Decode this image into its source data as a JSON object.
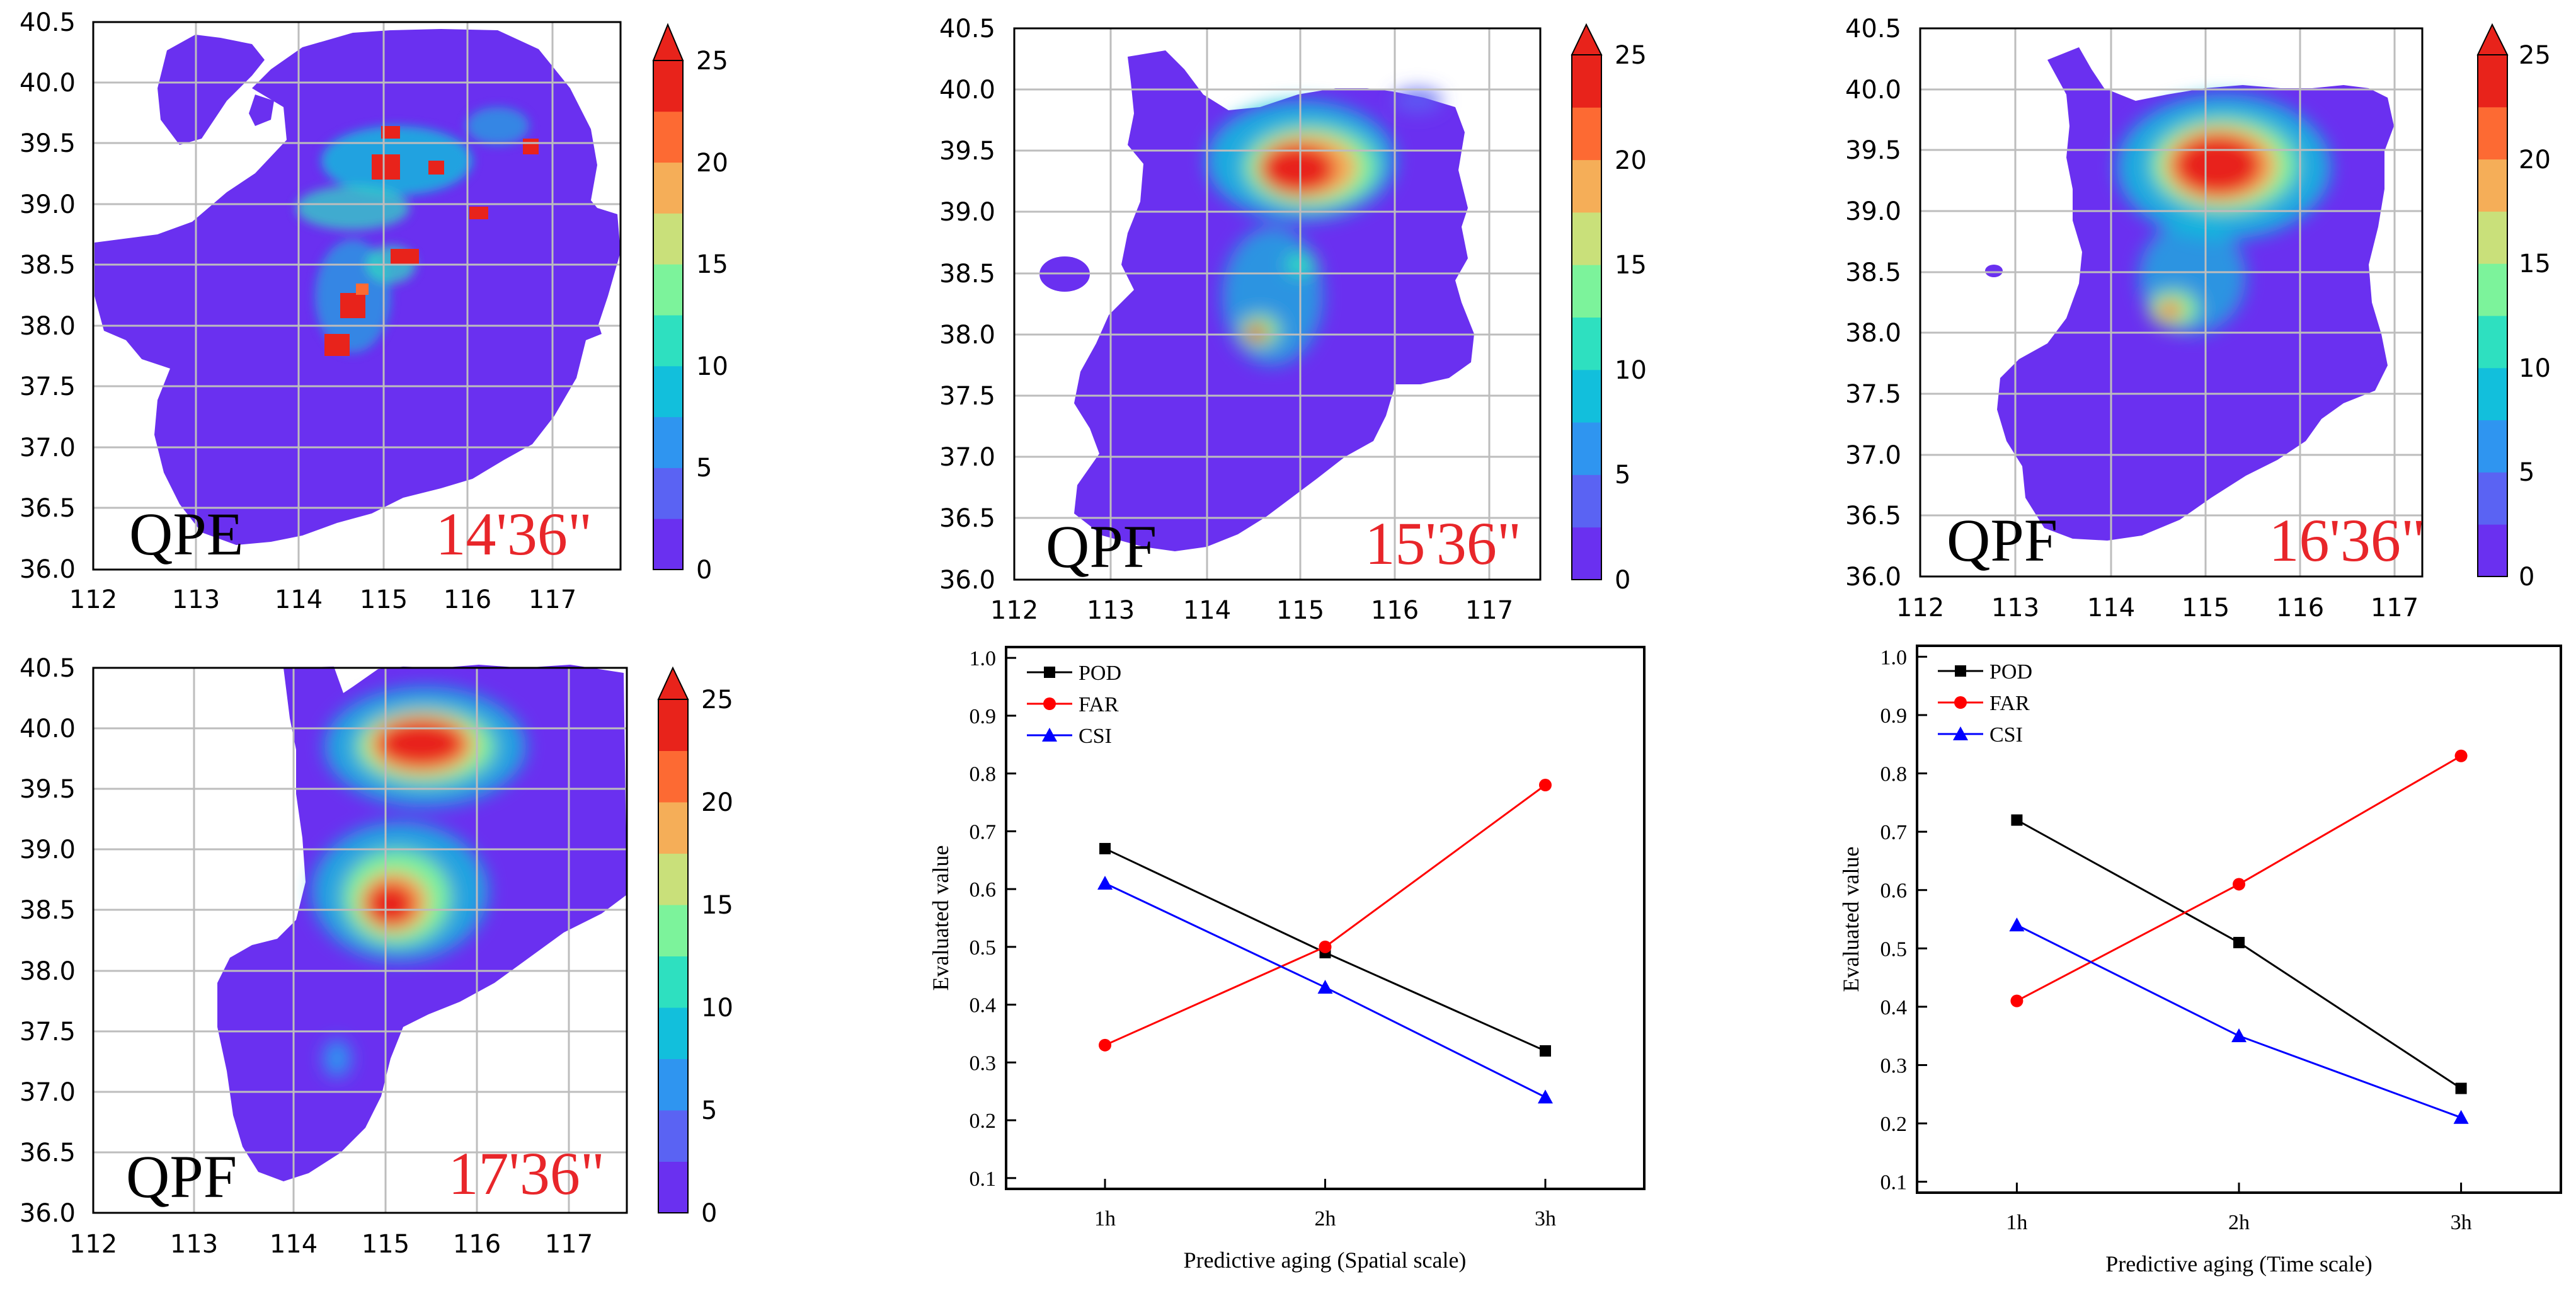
{
  "colorbar": {
    "ticks": [
      "25",
      "20",
      "15",
      "10",
      "5",
      "0"
    ],
    "colors": [
      "#6a30f0",
      "#5a63f3",
      "#2f95f0",
      "#12bfdc",
      "#2ee0c0",
      "#7cf39b",
      "#c9e07a",
      "#f5ae58",
      "#fd6a33",
      "#e8231b"
    ],
    "top_color": "#e8231b"
  },
  "map_panels": [
    {
      "label": "QPE",
      "time": "14'36\"",
      "xticks": [
        "112",
        "113",
        "114",
        "115",
        "116",
        "117"
      ],
      "yticks": [
        "40.5",
        "40.0",
        "39.5",
        "39.0",
        "38.5",
        "38.0",
        "37.5",
        "37.0",
        "36.5",
        "36.0"
      ]
    },
    {
      "label": "QPF",
      "time": "15'36\"",
      "xticks": [
        "112",
        "113",
        "114",
        "115",
        "116",
        "117"
      ],
      "yticks": [
        "40.5",
        "40.0",
        "39.5",
        "39.0",
        "38.5",
        "38.0",
        "37.5",
        "37.0",
        "36.5",
        "36.0"
      ]
    },
    {
      "label": "QPF",
      "time": "16'36\"",
      "xticks": [
        "112",
        "113",
        "114",
        "115",
        "116",
        "117"
      ],
      "yticks": [
        "40.5",
        "40.0",
        "39.5",
        "39.0",
        "38.5",
        "38.0",
        "37.5",
        "37.0",
        "36.5",
        "36.0"
      ]
    },
    {
      "label": "QPF",
      "time": "17'36\"",
      "xticks": [
        "112",
        "113",
        "114",
        "115",
        "116",
        "117"
      ],
      "yticks": [
        "40.5",
        "40.0",
        "39.5",
        "39.0",
        "38.5",
        "38.0",
        "37.5",
        "37.0",
        "36.5",
        "36.0"
      ]
    }
  ],
  "chart_data": [
    {
      "type": "line",
      "categories": [
        "1h",
        "2h",
        "3h"
      ],
      "series": [
        {
          "name": "POD",
          "values": [
            0.67,
            0.49,
            0.32
          ],
          "color": "#000000",
          "marker": "square"
        },
        {
          "name": "FAR",
          "values": [
            0.33,
            0.5,
            0.78
          ],
          "color": "#ff0000",
          "marker": "circle"
        },
        {
          "name": "CSI",
          "values": [
            0.61,
            0.43,
            0.24
          ],
          "color": "#0000ff",
          "marker": "triangle"
        }
      ],
      "yticks": [
        "0.1",
        "0.2",
        "0.3",
        "0.4",
        "0.5",
        "0.6",
        "0.7",
        "0.8",
        "0.9",
        "1.0"
      ],
      "ylim": [
        0.1,
        1.0
      ],
      "xlabel": "Predictive aging (Spatial scale)",
      "ylabel": "Evaluated value",
      "legend": "top-left"
    },
    {
      "type": "line",
      "categories": [
        "1h",
        "2h",
        "3h"
      ],
      "series": [
        {
          "name": "POD",
          "values": [
            0.72,
            0.51,
            0.26
          ],
          "color": "#000000",
          "marker": "square"
        },
        {
          "name": "FAR",
          "values": [
            0.41,
            0.61,
            0.83
          ],
          "color": "#ff0000",
          "marker": "circle"
        },
        {
          "name": "CSI",
          "values": [
            0.54,
            0.35,
            0.21
          ],
          "color": "#0000ff",
          "marker": "triangle"
        }
      ],
      "yticks": [
        "0.1",
        "0.2",
        "0.3",
        "0.4",
        "0.5",
        "0.6",
        "0.7",
        "0.8",
        "0.9",
        "1.0"
      ],
      "ylim": [
        0.1,
        1.0
      ],
      "xlabel": "Predictive aging (Time scale)",
      "ylabel": "Evaluated value",
      "legend": "top-left"
    }
  ]
}
